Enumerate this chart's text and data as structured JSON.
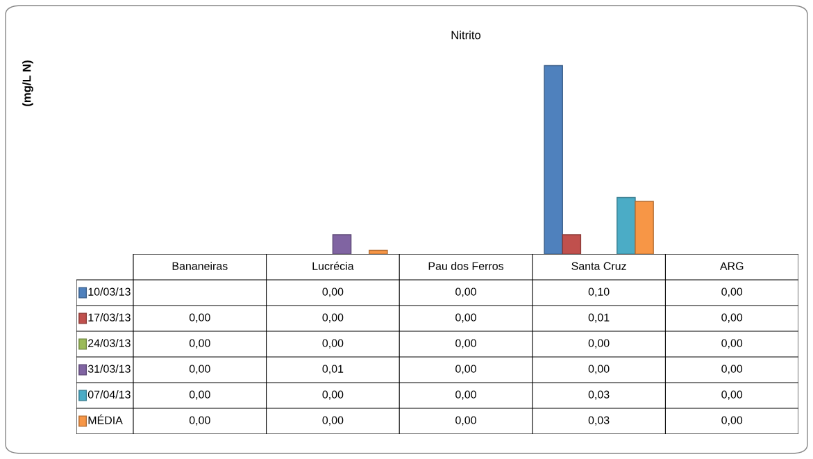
{
  "chart_data": {
    "type": "bar",
    "title": "Nitrito",
    "annotations": [
      "(mg/L N)"
    ],
    "legend": "left",
    "categories": [
      "Bananeiras",
      "Lucrécia",
      "Pau dos Ferros",
      "Santa Cruz",
      "ARG"
    ],
    "series": [
      {
        "name": "10/03/13",
        "color": "#4f81bd",
        "values": [
          null,
          0,
          0,
          0.1,
          0
        ],
        "value_labels": [
          null,
          "0,00",
          "0,00",
          "0,10",
          "0,00"
        ]
      },
      {
        "name": "17/03/13",
        "color": "#c0504d",
        "values": [
          0,
          0,
          0,
          0.0103,
          0
        ],
        "value_labels": [
          "0,00",
          "0,00",
          "0,00",
          "0,01",
          "0,00"
        ]
      },
      {
        "name": "24/03/13",
        "color": "#9bbb59",
        "values": [
          0,
          0,
          0,
          0,
          0
        ],
        "value_labels": [
          "0,00",
          "0,00",
          "0,00",
          "0,00",
          "0,00"
        ]
      },
      {
        "name": "31/03/13",
        "color": "#8064a2",
        "values": [
          0,
          0.0103,
          0,
          0,
          0
        ],
        "value_labels": [
          "0,00",
          "0,01",
          "0,00",
          "0,00",
          "0,00"
        ]
      },
      {
        "name": "07/04/13",
        "color": "#4bacc6",
        "values": [
          0,
          0,
          0,
          0.03,
          0
        ],
        "value_labels": [
          "0,00",
          "0,00",
          "0,00",
          "0,03",
          "0,00"
        ]
      },
      {
        "name": "MÉDIA",
        "color": "#f79646",
        "values": [
          0,
          0.002,
          0,
          0.028,
          0
        ],
        "value_labels": [
          "0,00",
          "0,00",
          "0,00",
          "0,03",
          "0,00"
        ]
      }
    ]
  }
}
